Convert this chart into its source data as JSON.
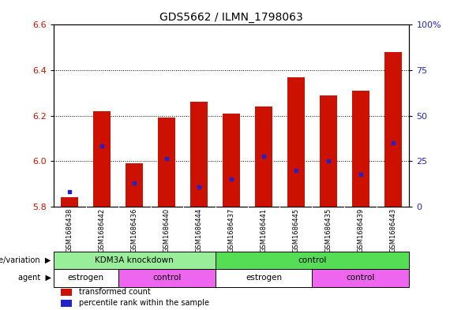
{
  "title": "GDS5662 / ILMN_1798063",
  "samples": [
    "GSM1686438",
    "GSM1686442",
    "GSM1686436",
    "GSM1686440",
    "GSM1686444",
    "GSM1686437",
    "GSM1686441",
    "GSM1686445",
    "GSM1686435",
    "GSM1686439",
    "GSM1686443"
  ],
  "bar_top": [
    5.84,
    6.22,
    5.99,
    6.19,
    6.26,
    6.21,
    6.24,
    6.37,
    6.29,
    6.31,
    6.48
  ],
  "blue_y": [
    5.865,
    6.065,
    5.905,
    6.01,
    5.885,
    5.92,
    6.02,
    5.96,
    6.0,
    5.94,
    6.08
  ],
  "ymin": 5.8,
  "ymax": 6.6,
  "yticks_left": [
    5.8,
    6.0,
    6.2,
    6.4,
    6.6
  ],
  "yticks_right_pct": [
    0,
    25,
    50,
    75,
    100
  ],
  "yticks_right_labels": [
    "0",
    "25",
    "50",
    "75",
    "100%"
  ],
  "bar_color": "#cc1100",
  "blue_color": "#2222cc",
  "bar_width": 0.55,
  "genotype_groups": [
    {
      "label": "KDM3A knockdown",
      "start": 0,
      "end": 4,
      "color": "#99ee99"
    },
    {
      "label": "control",
      "start": 5,
      "end": 10,
      "color": "#55dd55"
    }
  ],
  "agent_groups": [
    {
      "label": "estrogen",
      "start": 0,
      "end": 1,
      "color": "#ffffff"
    },
    {
      "label": "control",
      "start": 2,
      "end": 4,
      "color": "#ee66ee"
    },
    {
      "label": "estrogen",
      "start": 5,
      "end": 7,
      "color": "#ffffff"
    },
    {
      "label": "control",
      "start": 8,
      "end": 10,
      "color": "#ee66ee"
    }
  ],
  "legend_items": [
    {
      "label": "transformed count",
      "color": "#cc1100"
    },
    {
      "label": "percentile rank within the sample",
      "color": "#2222cc"
    }
  ],
  "left_label_genotype": "genotype/variation",
  "left_label_agent": "agent",
  "bar_color_red": "#cc1100",
  "ylabel_left_color": "#cc1100",
  "ylabel_right_color": "#2222cc",
  "tick_area_bg": "#cccccc"
}
